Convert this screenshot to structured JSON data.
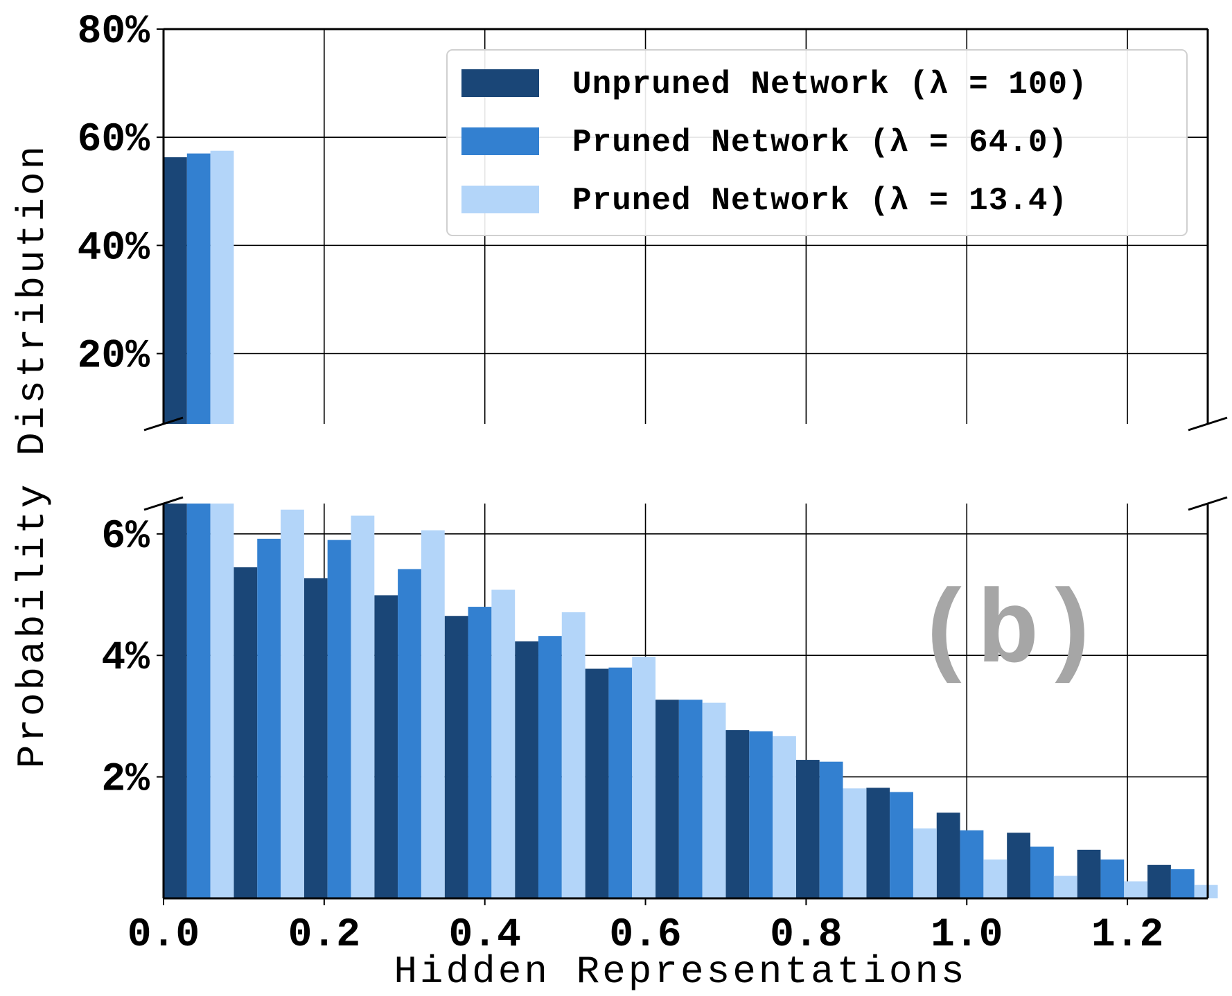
{
  "chart_data": {
    "type": "bar",
    "subtype": "grouped-histogram-broken-y-axis",
    "xlabel": "Hidden Representations",
    "ylabel": "Probability Distribution",
    "annotation": "(b)",
    "x_ticks": [
      "0.0",
      "0.2",
      "0.4",
      "0.6",
      "0.8",
      "1.0",
      "1.2"
    ],
    "x_tick_values": [
      0.0,
      0.2,
      0.4,
      0.6,
      0.8,
      1.0,
      1.2
    ],
    "xlim": [
      0.0,
      1.3
    ],
    "bin_width": 0.0875,
    "bin_starts": [
      0.0,
      0.0875,
      0.175,
      0.2625,
      0.35,
      0.4375,
      0.525,
      0.6125,
      0.7,
      0.7875,
      0.875,
      0.9625,
      1.05,
      1.1375,
      1.225
    ],
    "upper_panel": {
      "ylim": [
        7,
        80
      ],
      "y_ticks": [
        "20%",
        "40%",
        "60%",
        "80%"
      ],
      "y_tick_values": [
        20,
        40,
        60,
        80
      ]
    },
    "lower_panel": {
      "ylim": [
        0,
        6.5
      ],
      "y_ticks": [
        "2%",
        "4%",
        "6%"
      ],
      "y_tick_values": [
        2,
        4,
        6
      ]
    },
    "grid": true,
    "legend_position": "top-right",
    "series": [
      {
        "name": "Unpruned Network (λ = 100)",
        "color": "#1a4677",
        "values": [
          56.3,
          5.45,
          5.27,
          4.99,
          4.65,
          4.23,
          3.78,
          3.27,
          2.77,
          2.28,
          1.82,
          1.41,
          1.08,
          0.8,
          0.55
        ]
      },
      {
        "name": "Pruned Network (λ = 64.0)",
        "color": "#3380d0",
        "values": [
          57.0,
          5.92,
          5.9,
          5.42,
          4.8,
          4.32,
          3.8,
          3.27,
          2.75,
          2.25,
          1.75,
          1.12,
          0.85,
          0.64,
          0.48
        ]
      },
      {
        "name": "Pruned Network (λ = 13.4)",
        "color": "#b3d5f9",
        "values": [
          57.5,
          6.4,
          6.3,
          6.06,
          5.08,
          4.71,
          3.98,
          3.22,
          2.67,
          1.81,
          1.15,
          0.64,
          0.37,
          0.28,
          0.22
        ]
      }
    ]
  }
}
